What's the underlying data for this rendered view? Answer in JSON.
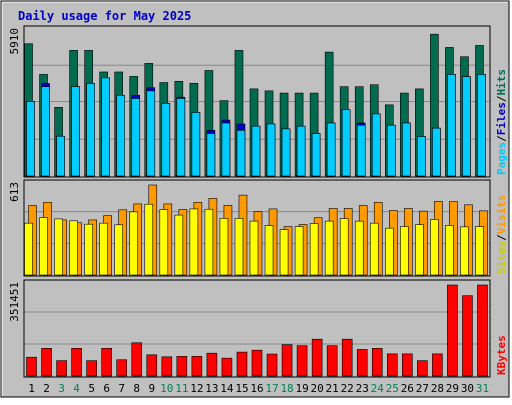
{
  "chart_data": [
    {
      "type": "bar",
      "title": "Daily usage for May 2025",
      "panel": "hits-files-pages",
      "ymax_label": "5910",
      "ylim": [
        0,
        5910
      ],
      "categories": [
        "1",
        "2",
        "3",
        "4",
        "5",
        "6",
        "7",
        "8",
        "9",
        "10",
        "11",
        "12",
        "13",
        "14",
        "15",
        "16",
        "17",
        "18",
        "19",
        "20",
        "21",
        "22",
        "23",
        "24",
        "25",
        "26",
        "27",
        "28",
        "29",
        "30",
        "31"
      ],
      "weekend_days": [
        "3",
        "4",
        "10",
        "11",
        "17",
        "18",
        "24",
        "25",
        "31"
      ],
      "series": [
        {
          "name": "Hits",
          "color": "#006b4f",
          "values": [
            5390,
            4140,
            2800,
            5120,
            5120,
            4240,
            4240,
            4060,
            4590,
            3810,
            3860,
            3780,
            4300,
            3070,
            5120,
            3550,
            3470,
            3380,
            3380,
            3380,
            5050,
            3640,
            3640,
            3720,
            2900,
            3380,
            3550,
            5780,
            5240,
            4860,
            5320
          ]
        },
        {
          "name": "Files",
          "color": "#0000cc",
          "values": [
            3030,
            3770,
            1620,
            3640,
            3770,
            4000,
            3290,
            3290,
            3600,
            2960,
            3210,
            2590,
            1860,
            2280,
            2120,
            2030,
            2120,
            1920,
            2030,
            1730,
            2160,
            2700,
            2160,
            2530,
            2070,
            2160,
            1610,
            1950,
            4140,
            4050,
            4140
          ]
        },
        {
          "name": "Pages",
          "color": "#00ccff",
          "values": [
            3030,
            3640,
            1620,
            3640,
            3770,
            4000,
            3290,
            3160,
            3470,
            2960,
            3160,
            2590,
            1730,
            2160,
            1860,
            2030,
            2120,
            1920,
            2030,
            1730,
            2160,
            2700,
            2070,
            2530,
            2070,
            2160,
            1610,
            1950,
            4140,
            4050,
            4140
          ]
        }
      ]
    },
    {
      "type": "bar",
      "panel": "visits-sites",
      "ymax_label": "613",
      "ylim": [
        0,
        613
      ],
      "categories": [
        "1",
        "2",
        "3",
        "4",
        "5",
        "6",
        "7",
        "8",
        "9",
        "10",
        "11",
        "12",
        "13",
        "14",
        "15",
        "16",
        "17",
        "18",
        "19",
        "20",
        "21",
        "22",
        "23",
        "24",
        "25",
        "26",
        "27",
        "28",
        "29",
        "30",
        "31"
      ],
      "series": [
        {
          "name": "Visits",
          "color": "#ff9900",
          "values": [
            473,
            495,
            375,
            356,
            375,
            404,
            444,
            484,
            613,
            484,
            446,
            495,
            522,
            474,
            544,
            431,
            450,
            330,
            344,
            390,
            453,
            453,
            473,
            495,
            439,
            453,
            435,
            501,
            500,
            478,
            437
          ]
        },
        {
          "name": "Sites",
          "color": "#ffff00",
          "values": [
            353,
            391,
            382,
            369,
            346,
            353,
            342,
            430,
            482,
            446,
            408,
            450,
            448,
            386,
            386,
            367,
            337,
            309,
            330,
            351,
            367,
            384,
            367,
            353,
            319,
            330,
            343,
            378,
            338,
            328,
            330
          ]
        }
      ]
    },
    {
      "type": "bar",
      "panel": "kbytes",
      "ymax_label": "351451",
      "ylim": [
        0,
        351451
      ],
      "categories": [
        "1",
        "2",
        "3",
        "4",
        "5",
        "6",
        "7",
        "8",
        "9",
        "10",
        "11",
        "12",
        "13",
        "14",
        "15",
        "16",
        "17",
        "18",
        "19",
        "20",
        "21",
        "22",
        "23",
        "24",
        "25",
        "26",
        "27",
        "28",
        "29",
        "30",
        "31"
      ],
      "series": [
        {
          "name": "KBytes",
          "color": "#ff0000",
          "values": [
            72580,
            106950,
            59240,
            106950,
            59240,
            106950,
            62750,
            128350,
            81810,
            74080,
            75890,
            75890,
            88140,
            68900,
            92290,
            99670,
            84720,
            120830,
            116980,
            142080,
            116980,
            142080,
            102600,
            106950,
            85500,
            85500,
            59240,
            85500,
            351451,
            310140,
            351451
          ]
        }
      ]
    }
  ]
}
